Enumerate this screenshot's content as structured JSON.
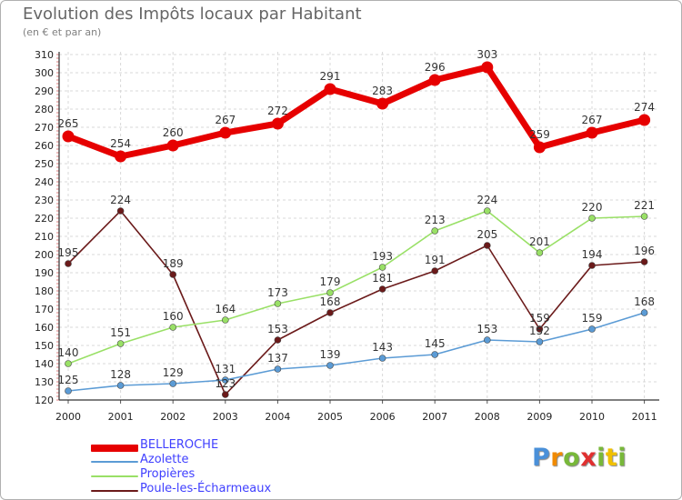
{
  "title": "Evolution des Impôts locaux par Habitant",
  "subtitle": "(en € et par an)",
  "logo": {
    "letters": [
      "P",
      "r",
      "o",
      "x",
      "i",
      "t",
      "i"
    ],
    "colors": [
      "#4a90d9",
      "#f08a00",
      "#78b83a",
      "#e03030",
      "#78b83a",
      "#f0c000",
      "#78b83a"
    ]
  },
  "chart_data": {
    "type": "line",
    "x": [
      "2000",
      "2001",
      "2002",
      "2003",
      "2004",
      "2005",
      "2006",
      "2007",
      "2008",
      "2009",
      "2010",
      "2011"
    ],
    "ylim": [
      120,
      310
    ],
    "yticks": [
      120,
      130,
      140,
      150,
      160,
      170,
      180,
      190,
      200,
      210,
      220,
      230,
      240,
      250,
      260,
      270,
      280,
      290,
      300,
      310
    ],
    "grid": true,
    "legend_position": "bottom",
    "series": [
      {
        "name": "BELLEROCHE",
        "color": "#e60000",
        "values": [
          265,
          254,
          260,
          267,
          272,
          291,
          283,
          296,
          303,
          259,
          267,
          274
        ]
      },
      {
        "name": "Azolette",
        "color": "#5b9bd5",
        "values": [
          125,
          128,
          129,
          131,
          137,
          139,
          143,
          145,
          153,
          152,
          159,
          168
        ]
      },
      {
        "name": "Propières",
        "color": "#99e066",
        "values": [
          140,
          151,
          160,
          164,
          173,
          179,
          193,
          213,
          224,
          201,
          220,
          221
        ]
      },
      {
        "name": "Poule-les-Écharmeaux",
        "color": "#6b1a1a",
        "values": [
          195,
          224,
          189,
          123,
          153,
          168,
          181,
          191,
          205,
          159,
          194,
          196
        ]
      }
    ],
    "data_labels": [
      [
        "265",
        "254",
        "260",
        "267",
        "272",
        "291",
        "283",
        "296",
        "303",
        "259",
        "267",
        "274"
      ],
      [
        "125",
        "128",
        "129",
        "131",
        "137",
        "139",
        "143",
        "145",
        "153",
        "152",
        "159",
        "168"
      ],
      [
        "140",
        "151",
        "160",
        "164",
        "173",
        "179",
        "193",
        "213",
        "224",
        "201",
        "220",
        "221"
      ],
      [
        "195",
        "224",
        "189",
        "123",
        "153",
        "168",
        "181",
        "191",
        "205",
        "159",
        "194",
        "196"
      ]
    ]
  }
}
